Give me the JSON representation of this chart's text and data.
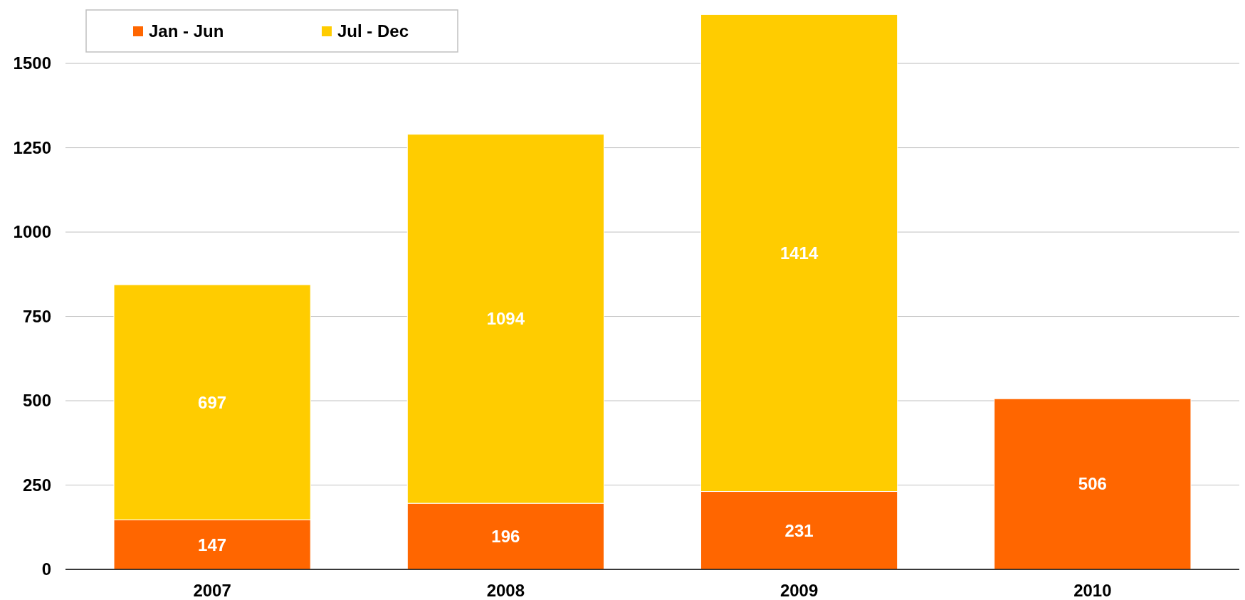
{
  "chart_data": {
    "type": "bar",
    "stacked": true,
    "categories": [
      "2007",
      "2008",
      "2009",
      "2010"
    ],
    "series": [
      {
        "name": "Jan - Jun",
        "color": "#ff6600",
        "values": [
          147,
          196,
          231,
          506
        ]
      },
      {
        "name": "Jul - Dec",
        "color": "#ffcc00",
        "values": [
          697,
          1094,
          1414,
          null
        ]
      }
    ],
    "ylim": [
      0,
      1650
    ],
    "yticks": [
      0,
      250,
      500,
      750,
      1000,
      1250,
      1500
    ],
    "grid": "y",
    "legend": "top left",
    "data_labels": true
  }
}
